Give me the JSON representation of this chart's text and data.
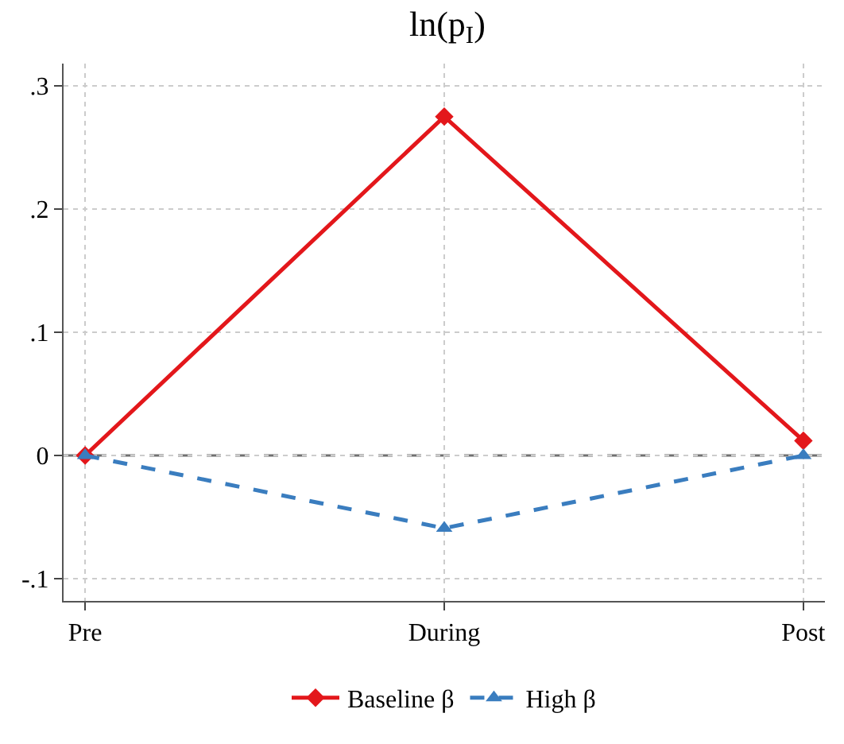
{
  "chart_data": {
    "type": "line",
    "title": "ln(p$_{I}$)",
    "categories": [
      "Pre",
      "During",
      "Post"
    ],
    "series": [
      {
        "name": "Baseline β",
        "color": "#e3171b",
        "values": [
          0,
          0.275,
          0.012
        ],
        "marker": "diamond",
        "line_style": "solid"
      },
      {
        "name": "High β",
        "color": "#3a7dbf",
        "values": [
          0,
          -0.059,
          0
        ],
        "marker": "triangle",
        "line_style": "dashed"
      }
    ],
    "ylim": [
      -0.118,
      0.318
    ],
    "yticks": [
      {
        "value": 0.3,
        "label": ".3"
      },
      {
        "value": 0.2,
        "label": ".2"
      },
      {
        "value": 0.1,
        "label": ".1"
      },
      0,
      {
        "value": -0.1,
        "label": "-.1"
      }
    ],
    "ref_lines": [
      {
        "axis": "y",
        "value": 0,
        "color": "#707070",
        "line_style": "dashed"
      }
    ],
    "grid": true,
    "legend": "bottom"
  }
}
